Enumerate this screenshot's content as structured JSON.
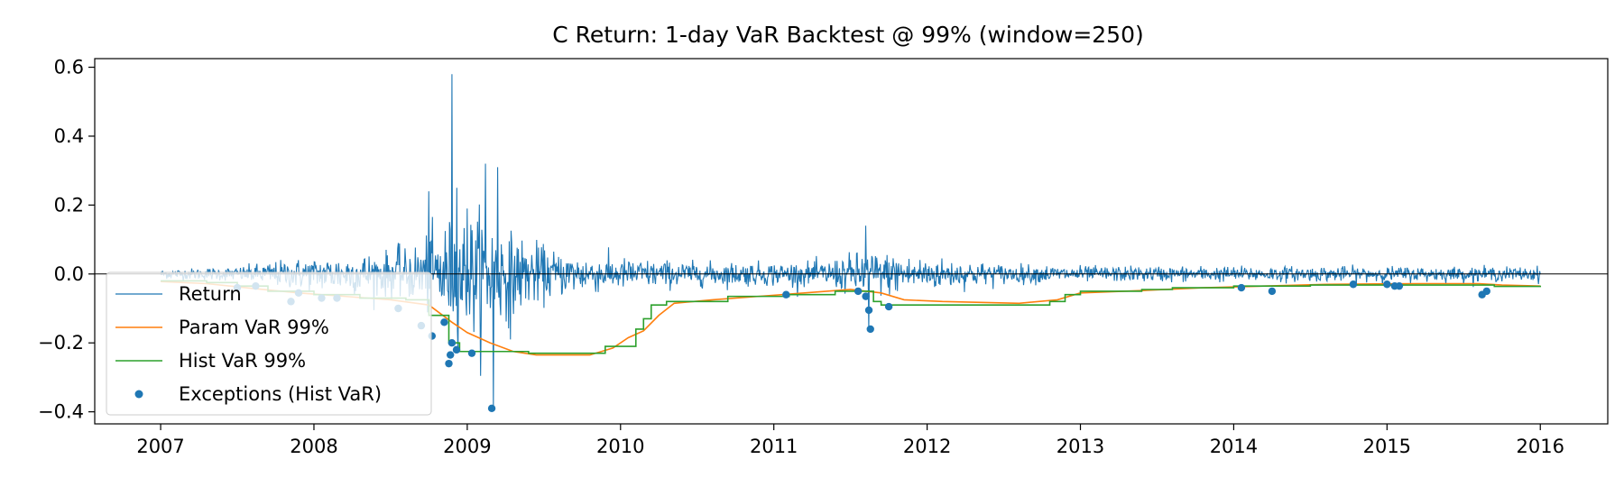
{
  "chart_data": {
    "type": "line",
    "title": "C Return: 1-day VaR Backtest @ 99%  (window=250)",
    "xlabel": "",
    "ylabel": "",
    "xlim": [
      2006.57,
      2016.44
    ],
    "ylim": [
      -0.435,
      0.625
    ],
    "x_ticks": [
      2007,
      2008,
      2009,
      2010,
      2011,
      2012,
      2013,
      2014,
      2015,
      2016
    ],
    "x_tick_labels": [
      "2007",
      "2008",
      "2009",
      "2010",
      "2011",
      "2012",
      "2013",
      "2014",
      "2015",
      "2016"
    ],
    "y_ticks": [
      -0.4,
      -0.2,
      0.0,
      0.2,
      0.4,
      0.6
    ],
    "y_tick_labels": [
      "−0.4",
      "−0.2",
      "0.0",
      "0.2",
      "0.4",
      "0.6"
    ],
    "grid": false,
    "zero_line": true,
    "legend_position": "lower-left",
    "colors": {
      "return": "#1f77b4",
      "param_var": "#ff7f0e",
      "hist_var": "#2ca02c",
      "exceptions": "#1f77b4"
    },
    "return_series": {
      "name": "Return",
      "x_range": [
        2007.0,
        2016.0
      ],
      "envelope": [
        {
          "x": 2007.0,
          "amp": 0.012
        },
        {
          "x": 2007.5,
          "amp": 0.018
        },
        {
          "x": 2007.8,
          "amp": 0.035
        },
        {
          "x": 2008.2,
          "amp": 0.05
        },
        {
          "x": 2008.6,
          "amp": 0.06
        },
        {
          "x": 2008.85,
          "amp": 0.13
        },
        {
          "x": 2009.1,
          "amp": 0.16
        },
        {
          "x": 2009.3,
          "amp": 0.1
        },
        {
          "x": 2009.6,
          "amp": 0.055
        },
        {
          "x": 2010.0,
          "amp": 0.04
        },
        {
          "x": 2010.5,
          "amp": 0.03
        },
        {
          "x": 2011.3,
          "amp": 0.03
        },
        {
          "x": 2011.6,
          "amp": 0.06
        },
        {
          "x": 2011.9,
          "amp": 0.045
        },
        {
          "x": 2012.5,
          "amp": 0.025
        },
        {
          "x": 2013.0,
          "amp": 0.02
        },
        {
          "x": 2016.0,
          "amp": 0.018
        }
      ],
      "spikes": [
        {
          "x": 2008.55,
          "y": 0.09
        },
        {
          "x": 2008.75,
          "y": 0.24
        },
        {
          "x": 2008.9,
          "y": 0.58
        },
        {
          "x": 2008.93,
          "y": 0.25
        },
        {
          "x": 2009.0,
          "y": 0.19
        },
        {
          "x": 2009.12,
          "y": 0.32
        },
        {
          "x": 2009.2,
          "y": 0.31
        },
        {
          "x": 2009.28,
          "y": 0.22
        },
        {
          "x": 2009.17,
          "y": -0.39
        },
        {
          "x": 2009.28,
          "y": -0.19
        },
        {
          "x": 2011.6,
          "y": 0.14
        },
        {
          "x": 2011.62,
          "y": -0.16
        }
      ]
    },
    "param_var": {
      "name": "Param VaR 99%",
      "points": [
        [
          2007.0,
          -0.022
        ],
        [
          2007.3,
          -0.028
        ],
        [
          2007.6,
          -0.042
        ],
        [
          2007.9,
          -0.055
        ],
        [
          2008.2,
          -0.065
        ],
        [
          2008.5,
          -0.075
        ],
        [
          2008.75,
          -0.09
        ],
        [
          2008.9,
          -0.14
        ],
        [
          2009.0,
          -0.17
        ],
        [
          2009.15,
          -0.2
        ],
        [
          2009.3,
          -0.225
        ],
        [
          2009.45,
          -0.235
        ],
        [
          2009.8,
          -0.235
        ],
        [
          2009.95,
          -0.215
        ],
        [
          2010.05,
          -0.185
        ],
        [
          2010.15,
          -0.165
        ],
        [
          2010.25,
          -0.12
        ],
        [
          2010.35,
          -0.085
        ],
        [
          2010.6,
          -0.075
        ],
        [
          2010.9,
          -0.065
        ],
        [
          2011.2,
          -0.055
        ],
        [
          2011.5,
          -0.045
        ],
        [
          2011.7,
          -0.055
        ],
        [
          2011.85,
          -0.075
        ],
        [
          2012.1,
          -0.08
        ],
        [
          2012.6,
          -0.085
        ],
        [
          2012.85,
          -0.075
        ],
        [
          2013.0,
          -0.055
        ],
        [
          2013.4,
          -0.048
        ],
        [
          2013.8,
          -0.04
        ],
        [
          2014.2,
          -0.035
        ],
        [
          2014.6,
          -0.03
        ],
        [
          2015.2,
          -0.028
        ],
        [
          2015.6,
          -0.028
        ],
        [
          2015.75,
          -0.032
        ],
        [
          2016.0,
          -0.035
        ]
      ]
    },
    "hist_var": {
      "name": "Hist VaR 99%",
      "steps": [
        [
          2007.0,
          -0.02
        ],
        [
          2007.3,
          -0.025
        ],
        [
          2007.5,
          -0.035
        ],
        [
          2007.7,
          -0.05
        ],
        [
          2008.0,
          -0.06
        ],
        [
          2008.3,
          -0.07
        ],
        [
          2008.6,
          -0.075
        ],
        [
          2008.75,
          -0.12
        ],
        [
          2008.88,
          -0.2
        ],
        [
          2008.95,
          -0.225
        ],
        [
          2009.4,
          -0.23
        ],
        [
          2009.9,
          -0.21
        ],
        [
          2010.1,
          -0.16
        ],
        [
          2010.15,
          -0.13
        ],
        [
          2010.2,
          -0.09
        ],
        [
          2010.3,
          -0.08
        ],
        [
          2010.7,
          -0.065
        ],
        [
          2011.1,
          -0.06
        ],
        [
          2011.4,
          -0.05
        ],
        [
          2011.65,
          -0.08
        ],
        [
          2011.7,
          -0.09
        ],
        [
          2012.8,
          -0.08
        ],
        [
          2012.9,
          -0.06
        ],
        [
          2013.0,
          -0.05
        ],
        [
          2013.4,
          -0.045
        ],
        [
          2013.6,
          -0.04
        ],
        [
          2014.0,
          -0.035
        ],
        [
          2014.5,
          -0.032
        ],
        [
          2015.0,
          -0.032
        ],
        [
          2015.5,
          -0.032
        ],
        [
          2015.7,
          -0.036
        ],
        [
          2016.0,
          -0.038
        ]
      ]
    },
    "exceptions": {
      "name": "Exceptions (Hist VaR)",
      "points": [
        [
          2007.5,
          -0.04
        ],
        [
          2007.62,
          -0.035
        ],
        [
          2007.85,
          -0.08
        ],
        [
          2007.9,
          -0.055
        ],
        [
          2008.05,
          -0.07
        ],
        [
          2008.15,
          -0.07
        ],
        [
          2008.55,
          -0.1
        ],
        [
          2008.7,
          -0.15
        ],
        [
          2008.77,
          -0.18
        ],
        [
          2008.85,
          -0.14
        ],
        [
          2008.88,
          -0.26
        ],
        [
          2008.89,
          -0.235
        ],
        [
          2008.9,
          -0.2
        ],
        [
          2008.93,
          -0.22
        ],
        [
          2009.03,
          -0.23
        ],
        [
          2009.16,
          -0.39
        ],
        [
          2011.08,
          -0.06
        ],
        [
          2011.55,
          -0.05
        ],
        [
          2011.6,
          -0.065
        ],
        [
          2011.62,
          -0.105
        ],
        [
          2011.63,
          -0.16
        ],
        [
          2011.75,
          -0.095
        ],
        [
          2014.05,
          -0.04
        ],
        [
          2014.25,
          -0.05
        ],
        [
          2014.78,
          -0.03
        ],
        [
          2015.0,
          -0.03
        ],
        [
          2015.05,
          -0.035
        ],
        [
          2015.08,
          -0.035
        ],
        [
          2015.62,
          -0.06
        ],
        [
          2015.65,
          -0.05
        ]
      ]
    },
    "legend": [
      "Return",
      "Param VaR 99%",
      "Hist VaR 99%",
      "Exceptions (Hist VaR)"
    ]
  }
}
